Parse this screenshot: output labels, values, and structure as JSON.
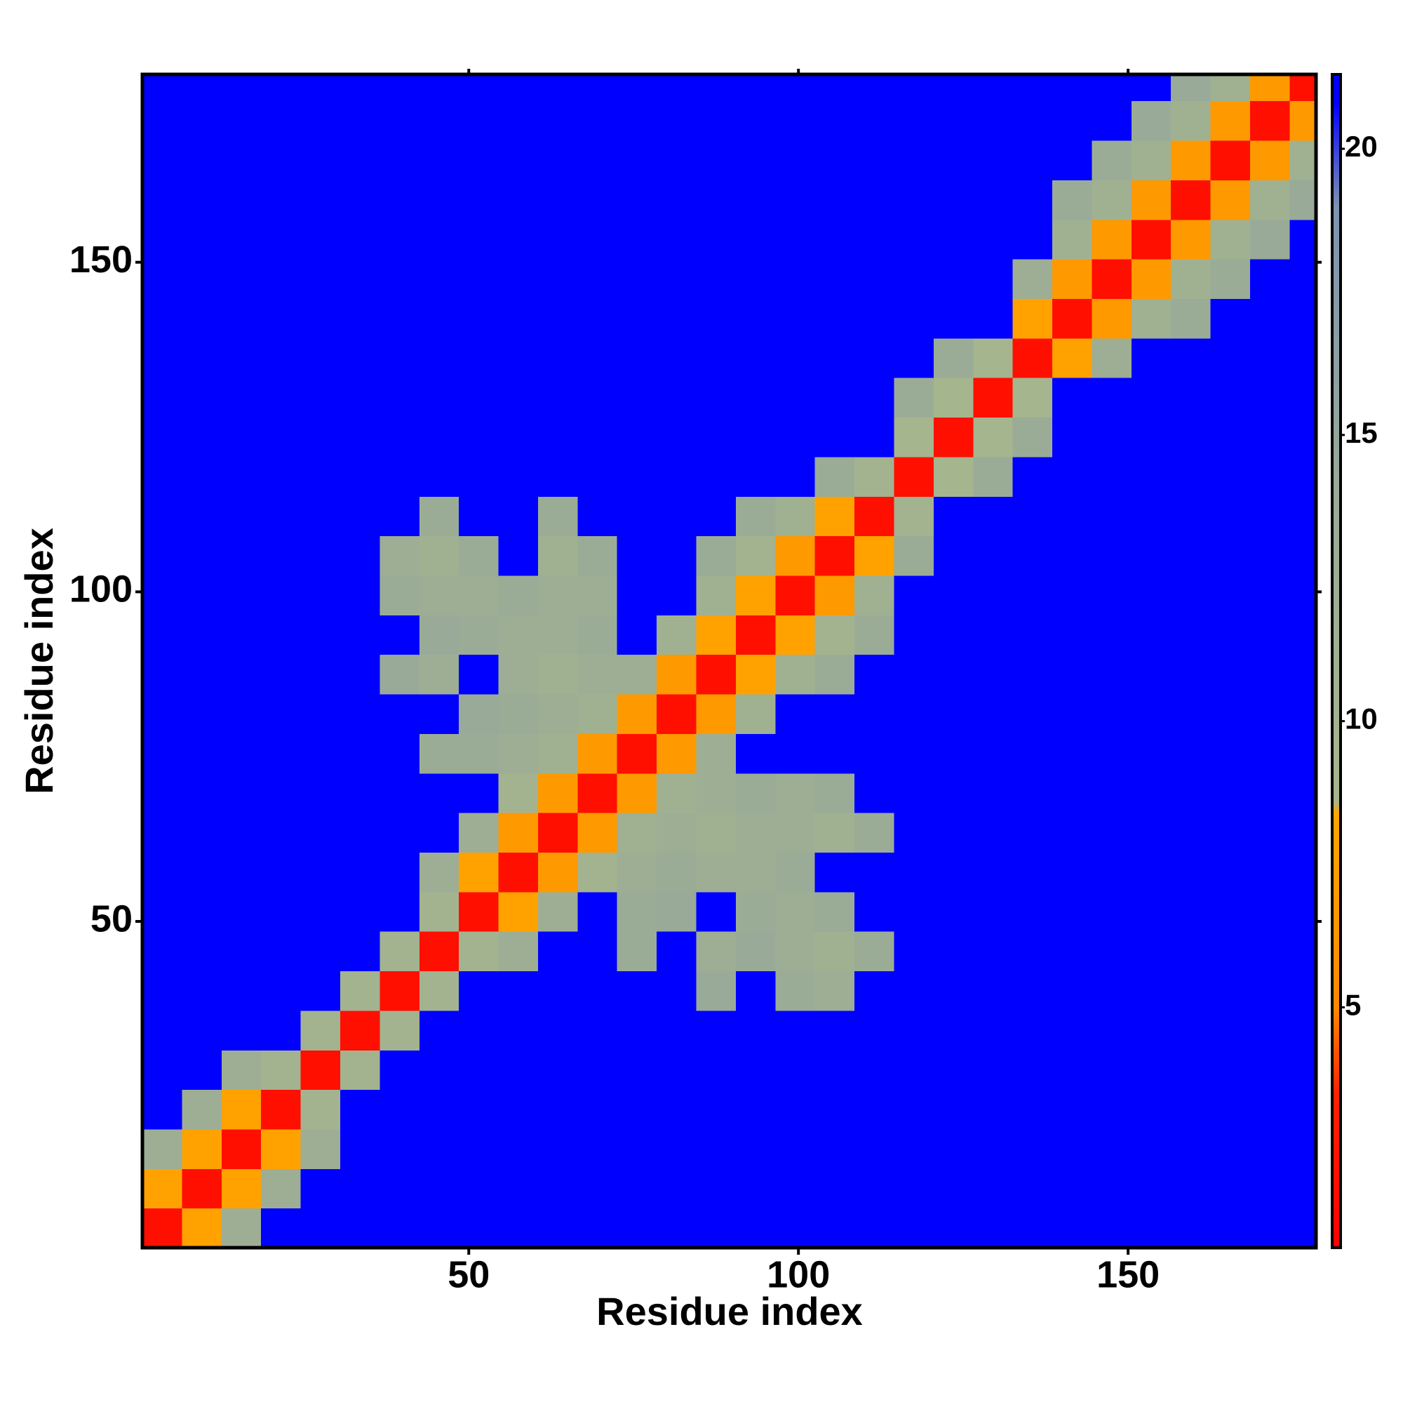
{
  "chart_data": {
    "type": "heatmap",
    "xlabel": "Residue index",
    "ylabel": "Residue index",
    "bins": [
      0.5,
      6.5,
      12.5,
      18.5,
      24.5,
      30.5,
      36.5,
      42.5,
      48.5,
      54.5,
      60.5,
      66.5,
      72.5,
      78.5,
      84.5,
      90.5,
      96.5,
      102.5,
      108.5,
      114.5,
      120.5,
      126.5,
      132.5,
      138.5,
      144.5,
      150.5,
      156.5,
      162.5,
      168.5,
      174.5,
      178.5
    ],
    "xlim": [
      0.5,
      178.5
    ],
    "ylim": [
      0.5,
      178.5
    ],
    "xticks": [
      50,
      100,
      150
    ],
    "yticks": [
      50,
      100,
      150
    ],
    "zlim": [
      0.8,
      21.3
    ],
    "zticks": [
      5,
      10,
      15,
      20
    ],
    "colorscale": [
      [
        0.8,
        "#ff0000"
      ],
      [
        3.5,
        "#ff2200"
      ],
      [
        5,
        "#ff8800"
      ],
      [
        8.4,
        "#ffa500"
      ],
      [
        8.6,
        "#a6b68c"
      ],
      [
        14,
        "#99aa98"
      ],
      [
        19,
        "#7d93b0"
      ],
      [
        20.8,
        "#0000ff"
      ]
    ],
    "values": [
      [
        2,
        8,
        12,
        21,
        21,
        21,
        21,
        21,
        21,
        21,
        21,
        21,
        21,
        21,
        21,
        21,
        21,
        21,
        21,
        21,
        21,
        21,
        21,
        21,
        21,
        21,
        21,
        21,
        21,
        21
      ],
      [
        8,
        2,
        8,
        12,
        21,
        21,
        21,
        21,
        21,
        21,
        21,
        21,
        21,
        21,
        21,
        21,
        21,
        21,
        21,
        21,
        21,
        21,
        21,
        21,
        21,
        21,
        21,
        21,
        21,
        21
      ],
      [
        12,
        8,
        2,
        8,
        12,
        21,
        21,
        21,
        21,
        21,
        21,
        21,
        21,
        21,
        21,
        21,
        21,
        21,
        21,
        21,
        21,
        21,
        21,
        21,
        21,
        21,
        21,
        21,
        21,
        21
      ],
      [
        21,
        12,
        8,
        2,
        10,
        21,
        21,
        21,
        21,
        21,
        21,
        21,
        21,
        21,
        21,
        21,
        21,
        21,
        21,
        21,
        21,
        21,
        21,
        21,
        21,
        21,
        21,
        21,
        21,
        21
      ],
      [
        21,
        21,
        12,
        10,
        2,
        10,
        21,
        21,
        21,
        21,
        21,
        21,
        21,
        21,
        21,
        21,
        21,
        21,
        21,
        21,
        21,
        21,
        21,
        21,
        21,
        21,
        21,
        21,
        21,
        21
      ],
      [
        21,
        21,
        21,
        21,
        10,
        2,
        10,
        21,
        21,
        21,
        21,
        21,
        21,
        21,
        21,
        21,
        21,
        21,
        21,
        21,
        21,
        21,
        21,
        21,
        21,
        21,
        21,
        21,
        21,
        21
      ],
      [
        21,
        21,
        21,
        21,
        21,
        10,
        2,
        10,
        21,
        21,
        21,
        21,
        21,
        21,
        14,
        21,
        13,
        12,
        21,
        21,
        21,
        21,
        21,
        21,
        21,
        21,
        21,
        21,
        21,
        21
      ],
      [
        21,
        21,
        21,
        21,
        21,
        21,
        10,
        2,
        10,
        12,
        21,
        21,
        13,
        21,
        12,
        14,
        12,
        11,
        13,
        21,
        21,
        21,
        21,
        21,
        21,
        21,
        21,
        21,
        21,
        21
      ],
      [
        21,
        21,
        21,
        21,
        21,
        21,
        21,
        10,
        2,
        8,
        12,
        21,
        13,
        14,
        21,
        13,
        12,
        13,
        21,
        21,
        21,
        21,
        21,
        21,
        21,
        21,
        21,
        21,
        21,
        21
      ],
      [
        21,
        21,
        21,
        21,
        21,
        21,
        21,
        12,
        8,
        2,
        7,
        10,
        12,
        13,
        12,
        12,
        13,
        21,
        21,
        21,
        21,
        21,
        21,
        21,
        21,
        21,
        21,
        21,
        21,
        21
      ],
      [
        21,
        21,
        21,
        21,
        21,
        21,
        21,
        21,
        12,
        7,
        2,
        7,
        11,
        12,
        11,
        12,
        12,
        11,
        13,
        21,
        21,
        21,
        21,
        21,
        21,
        21,
        21,
        21,
        21,
        21
      ],
      [
        21,
        21,
        21,
        21,
        21,
        21,
        21,
        21,
        21,
        10,
        7,
        2,
        7,
        11,
        12,
        13,
        12,
        13,
        21,
        21,
        21,
        21,
        21,
        21,
        21,
        21,
        21,
        21,
        21,
        21
      ],
      [
        21,
        21,
        21,
        21,
        21,
        21,
        21,
        13,
        13,
        12,
        11,
        7,
        2,
        7,
        12,
        21,
        21,
        21,
        21,
        21,
        21,
        21,
        21,
        21,
        21,
        21,
        21,
        21,
        21,
        21
      ],
      [
        21,
        21,
        21,
        21,
        21,
        21,
        21,
        21,
        14,
        13,
        12,
        11,
        7,
        2,
        7,
        11,
        21,
        21,
        21,
        21,
        21,
        21,
        21,
        21,
        21,
        21,
        21,
        21,
        21,
        21
      ],
      [
        21,
        21,
        21,
        21,
        21,
        21,
        14,
        12,
        21,
        12,
        11,
        12,
        12,
        7,
        2,
        8,
        11,
        13,
        21,
        21,
        21,
        21,
        21,
        21,
        21,
        21,
        21,
        21,
        21,
        21
      ],
      [
        21,
        21,
        21,
        21,
        21,
        21,
        21,
        14,
        13,
        12,
        12,
        13,
        21,
        11,
        8,
        2,
        8,
        10,
        13,
        21,
        21,
        21,
        21,
        21,
        21,
        21,
        21,
        21,
        21,
        21
      ],
      [
        21,
        21,
        21,
        21,
        21,
        21,
        13,
        12,
        12,
        13,
        12,
        12,
        21,
        21,
        11,
        8,
        2,
        7,
        11,
        21,
        21,
        21,
        21,
        21,
        21,
        21,
        21,
        21,
        21,
        21
      ],
      [
        21,
        21,
        21,
        21,
        21,
        21,
        12,
        11,
        13,
        21,
        11,
        13,
        21,
        21,
        13,
        10,
        7,
        2,
        8,
        13,
        21,
        21,
        21,
        21,
        21,
        21,
        21,
        21,
        21,
        21
      ],
      [
        21,
        21,
        21,
        21,
        21,
        21,
        21,
        13,
        21,
        21,
        13,
        21,
        21,
        21,
        21,
        13,
        11,
        8,
        2,
        10,
        21,
        21,
        21,
        21,
        21,
        21,
        21,
        21,
        21,
        21
      ],
      [
        21,
        21,
        21,
        21,
        21,
        21,
        21,
        21,
        21,
        21,
        21,
        21,
        21,
        21,
        21,
        21,
        21,
        13,
        10,
        2,
        9,
        13,
        21,
        21,
        21,
        21,
        21,
        21,
        21,
        21
      ],
      [
        21,
        21,
        21,
        21,
        21,
        21,
        21,
        21,
        21,
        21,
        21,
        21,
        21,
        21,
        21,
        21,
        21,
        21,
        21,
        9,
        2,
        9,
        13,
        21,
        21,
        21,
        21,
        21,
        21,
        21
      ],
      [
        21,
        21,
        21,
        21,
        21,
        21,
        21,
        21,
        21,
        21,
        21,
        21,
        21,
        21,
        21,
        21,
        21,
        21,
        21,
        13,
        9,
        2,
        9,
        21,
        21,
        21,
        21,
        21,
        21,
        21
      ],
      [
        21,
        21,
        21,
        21,
        21,
        21,
        21,
        21,
        21,
        21,
        21,
        21,
        21,
        21,
        21,
        21,
        21,
        21,
        21,
        21,
        13,
        9,
        2,
        8,
        12,
        21,
        21,
        21,
        21,
        21
      ],
      [
        21,
        21,
        21,
        21,
        21,
        21,
        21,
        21,
        21,
        21,
        21,
        21,
        21,
        21,
        21,
        21,
        21,
        21,
        21,
        21,
        21,
        21,
        8,
        2,
        7,
        11,
        13,
        21,
        21,
        21
      ],
      [
        21,
        21,
        21,
        21,
        21,
        21,
        21,
        21,
        21,
        21,
        21,
        21,
        21,
        21,
        21,
        21,
        21,
        21,
        21,
        21,
        21,
        21,
        12,
        7,
        2,
        7,
        11,
        13,
        21,
        21
      ],
      [
        21,
        21,
        21,
        21,
        21,
        21,
        21,
        21,
        21,
        21,
        21,
        21,
        21,
        21,
        21,
        21,
        21,
        21,
        21,
        21,
        21,
        21,
        21,
        11,
        7,
        2,
        7,
        11,
        14,
        21
      ],
      [
        21,
        21,
        21,
        21,
        21,
        21,
        21,
        21,
        21,
        21,
        21,
        21,
        21,
        21,
        21,
        21,
        21,
        21,
        21,
        21,
        21,
        21,
        21,
        13,
        11,
        7,
        2,
        7,
        11,
        14
      ],
      [
        21,
        21,
        21,
        21,
        21,
        21,
        21,
        21,
        21,
        21,
        21,
        21,
        21,
        21,
        21,
        21,
        21,
        21,
        21,
        21,
        21,
        21,
        21,
        21,
        13,
        11,
        7,
        2,
        7,
        11
      ],
      [
        21,
        21,
        21,
        21,
        21,
        21,
        21,
        21,
        21,
        21,
        21,
        21,
        21,
        21,
        21,
        21,
        21,
        21,
        21,
        21,
        21,
        21,
        21,
        21,
        21,
        14,
        11,
        7,
        2,
        7
      ],
      [
        21,
        21,
        21,
        21,
        21,
        21,
        21,
        21,
        21,
        21,
        21,
        21,
        21,
        21,
        21,
        21,
        21,
        21,
        21,
        21,
        21,
        21,
        21,
        21,
        21,
        21,
        14,
        11,
        7,
        2
      ]
    ]
  }
}
